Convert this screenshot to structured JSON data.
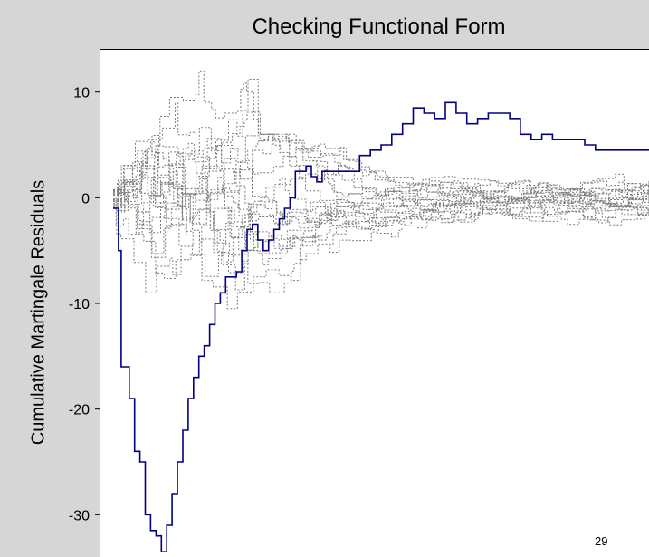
{
  "slide": {
    "page_number": "29"
  },
  "chart_data": {
    "type": "line",
    "title": "Checking Functional Form",
    "xlabel": "",
    "ylabel": "Cumulative Martingale Residuals",
    "ylim": [
      -34,
      14
    ],
    "xlim": [
      0,
      100
    ],
    "y_ticks": [
      10,
      0,
      -10,
      -20,
      -30
    ],
    "grid": false,
    "colors": {
      "observed": "#000080",
      "simulated": "#7a7a7a",
      "background": "#d6d6d6"
    },
    "series": [
      {
        "role": "observed",
        "style": "solid",
        "x": [
          0,
          1,
          1.5,
          3,
          4,
          5,
          6,
          7,
          8,
          9,
          10,
          11,
          12,
          13,
          14,
          15,
          16,
          17,
          18,
          19,
          20,
          21,
          22,
          23,
          24,
          25,
          26,
          27,
          28,
          29,
          30,
          31,
          32,
          33,
          34,
          35,
          36,
          37,
          38,
          39,
          40,
          42,
          44,
          46,
          48,
          50,
          52,
          54,
          56,
          58,
          60,
          62,
          64,
          66,
          68,
          70,
          72,
          74,
          76,
          78,
          80,
          82,
          84,
          86,
          88,
          90,
          92,
          94,
          96,
          98,
          100
        ],
        "y": [
          -1,
          -5,
          -16,
          -19,
          -24,
          -25,
          -30,
          -31.5,
          -32,
          -33.5,
          -31,
          -28,
          -25,
          -22,
          -19,
          -17,
          -15,
          -14,
          -12,
          -10,
          -9,
          -7.5,
          -7.5,
          -7,
          -5,
          -3,
          -2.5,
          -4,
          -5,
          -4,
          -3,
          -2,
          -1,
          0,
          2.5,
          2.5,
          3,
          2,
          1.5,
          2.5,
          2.5,
          2.5,
          2.5,
          4,
          4.5,
          5,
          6,
          7,
          8.5,
          8,
          7.5,
          9,
          8,
          7,
          7.5,
          8,
          8,
          7.5,
          6,
          5.5,
          6,
          5.5,
          5.5,
          5.5,
          5,
          4.5,
          4.5,
          4.5,
          4.5,
          4.5,
          4.5
        ]
      }
    ]
  }
}
